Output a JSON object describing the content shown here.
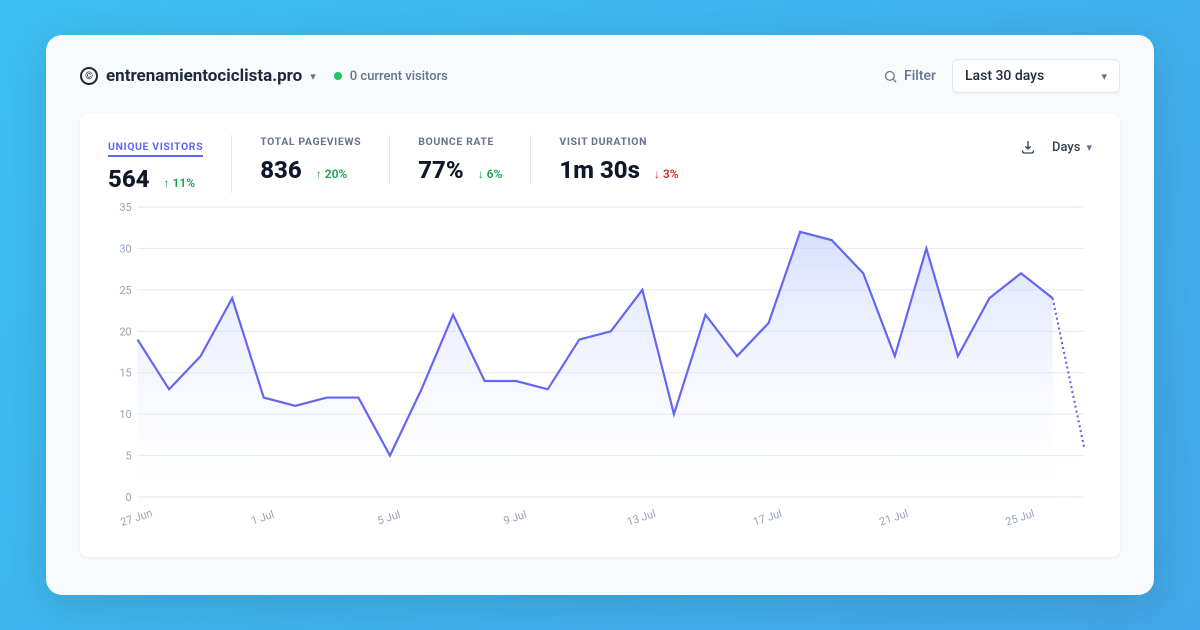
{
  "header": {
    "site_name": "entrenamientociclista.pro",
    "current_visitors": "0 current visitors",
    "filter_label": "Filter",
    "range_label": "Last 30 days"
  },
  "metrics": [
    {
      "label": "UNIQUE VISITORS",
      "value": "564",
      "delta": "11%",
      "dir": "up",
      "good": true,
      "active": true
    },
    {
      "label": "TOTAL PAGEVIEWS",
      "value": "836",
      "delta": "20%",
      "dir": "up",
      "good": true,
      "active": false
    },
    {
      "label": "BOUNCE RATE",
      "value": "77%",
      "delta": "6%",
      "dir": "down",
      "good": true,
      "active": false
    },
    {
      "label": "VISIT DURATION",
      "value": "1m 30s",
      "delta": "3%",
      "dir": "down",
      "good": false,
      "active": false
    }
  ],
  "chart": {
    "type": "area",
    "granularity_label": "Days",
    "line_color": "#6366f1",
    "area_top_color": "#c7d2fe",
    "area_bottom_color": "#ffffff",
    "grid_color": "#e2e8f0",
    "axis_label_color": "#94a3b8",
    "background_color": "#ffffff",
    "ylim": [
      0,
      35
    ],
    "ytick_step": 5,
    "y_ticks": [
      0,
      5,
      10,
      15,
      20,
      25,
      30,
      35
    ],
    "x_labels": [
      "27 Jun",
      "1 Jul",
      "5 Jul",
      "9 Jul",
      "13 Jul",
      "17 Jul",
      "21 Jul",
      "25 Jul"
    ],
    "x_label_every": 4,
    "values": [
      19,
      13,
      17,
      24,
      12,
      11,
      12,
      12,
      5,
      13,
      22,
      14,
      14,
      13,
      19,
      20,
      25,
      10,
      22,
      17,
      21,
      32,
      31,
      27,
      17,
      30,
      17,
      24,
      27,
      24
    ],
    "last_point_value": 6,
    "last_segment_dotted": true
  }
}
